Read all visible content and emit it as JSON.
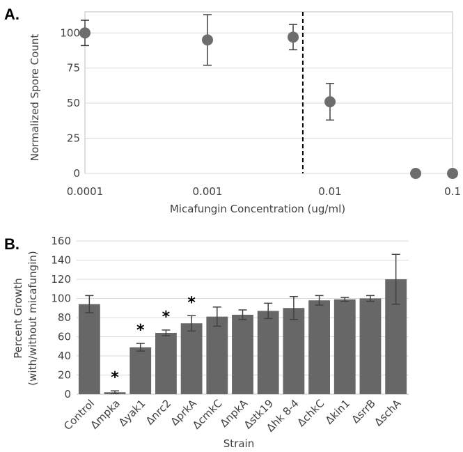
{
  "chart_data": [
    {
      "panel": "A.",
      "type": "scatter",
      "xlabel": "Micafungin Concentration (ug/ml)",
      "ylabel": "Normalized Spore Count",
      "x_scale": "log",
      "xlim": [
        0.0001,
        0.1
      ],
      "ylim": [
        0,
        115
      ],
      "x_ticks": [
        "0.0001",
        "0.001",
        "0.01",
        "0.1"
      ],
      "y_ticks": [
        "0",
        "25",
        "50",
        "75",
        "100"
      ],
      "threshold_x": 0.006,
      "points": [
        {
          "x": 0.0001,
          "y": 100,
          "err": 9
        },
        {
          "x": 0.001,
          "y": 95,
          "err": 18
        },
        {
          "x": 0.005,
          "y": 97,
          "err": 9
        },
        {
          "x": 0.01,
          "y": 51,
          "err": 13
        },
        {
          "x": 0.05,
          "y": 0,
          "err": 0
        },
        {
          "x": 0.1,
          "y": 0,
          "err": 0
        }
      ],
      "grid": "horizontal",
      "color": "#6d6d6d"
    },
    {
      "panel": "B.",
      "type": "bar",
      "xlabel": "Strain",
      "ylabel_lines": [
        "Percent Growth",
        "(with/without micafungin)"
      ],
      "ylim": [
        0,
        160
      ],
      "y_ticks": [
        "0",
        "20",
        "40",
        "60",
        "80",
        "100",
        "120",
        "140",
        "160"
      ],
      "categories": [
        "Control",
        "Δmpka",
        "Δyak1",
        "Δnrc2",
        "ΔprkA",
        "ΔcmkC",
        "ΔnpkA",
        "Δstk19",
        "Δhk 8-4",
        "ΔchkC",
        "Δkin1",
        "ΔsrrB",
        "ΔschA"
      ],
      "values": [
        94,
        2,
        49,
        64,
        74,
        81,
        83,
        87,
        90,
        98,
        99,
        100,
        120
      ],
      "errors": [
        9,
        1.5,
        4,
        3,
        8,
        10,
        5,
        8,
        12,
        5,
        2,
        3,
        26
      ],
      "significance": [
        "",
        "*",
        "*",
        "*",
        "*",
        "",
        "",
        "",
        "",
        "",
        "",
        "",
        ""
      ],
      "grid": "horizontal",
      "color": "#676767"
    }
  ]
}
